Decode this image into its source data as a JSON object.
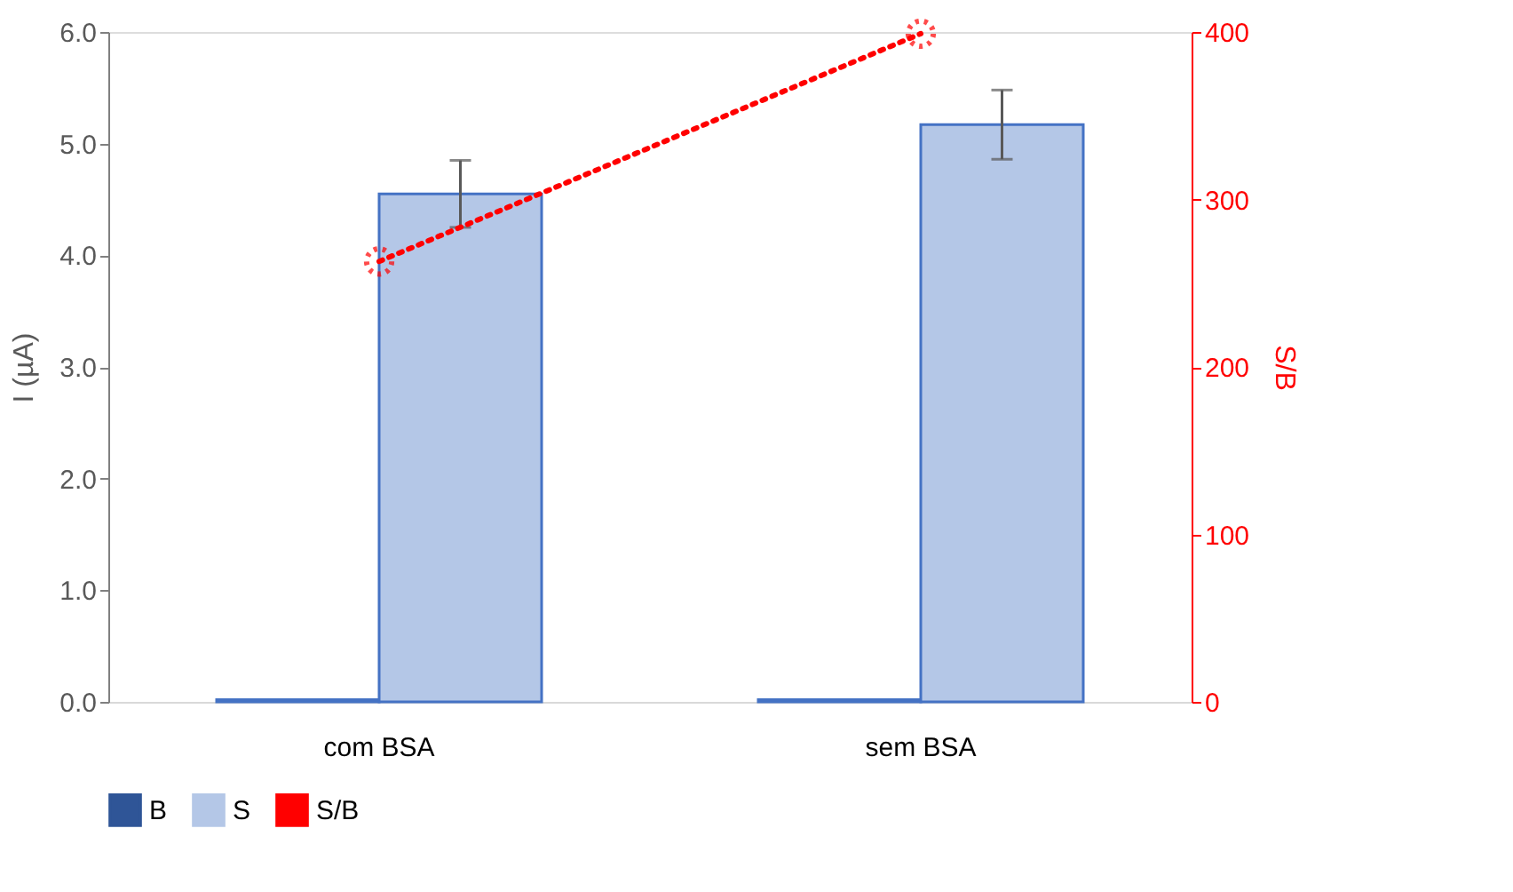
{
  "chart_data": {
    "type": "bar",
    "categories": [
      "com BSA",
      "sem BSA"
    ],
    "ylabel": "I (µA)",
    "y2label": "S/B",
    "ylim": [
      0,
      6
    ],
    "yticks": [
      {
        "value": 0,
        "label": "0.0"
      },
      {
        "value": 1,
        "label": "1.0"
      },
      {
        "value": 2,
        "label": "2.0"
      },
      {
        "value": 3,
        "label": "3.0"
      },
      {
        "value": 4,
        "label": "4.0"
      },
      {
        "value": 5,
        "label": "5.0"
      },
      {
        "value": 6,
        "label": "6.0"
      }
    ],
    "y2lim": [
      0,
      400
    ],
    "y2ticks": [
      0,
      100,
      200,
      300,
      400
    ],
    "series": [
      {
        "name": "B",
        "color": "#2f5597",
        "values": [
          0.02,
          0.02
        ]
      },
      {
        "name": "S",
        "color": "#b4c7e7",
        "values": [
          4.55,
          5.17
        ],
        "errors": [
          0.3,
          0.31
        ]
      },
      {
        "name": "S/B",
        "type": "line",
        "axis": "y2",
        "color": "#ff0000",
        "values": [
          263,
          399
        ],
        "marker": "circle",
        "line_style": "dotted"
      }
    ],
    "legend": "bottom",
    "grid": false
  }
}
